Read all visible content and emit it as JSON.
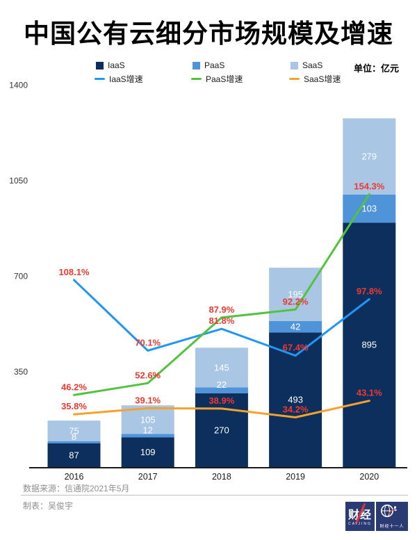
{
  "title": "中国公有云细分市场规模及增速",
  "unit_label": "单位：亿元",
  "legend": {
    "bars": [
      {
        "label": "IaaS",
        "color": "#0d2f5e"
      },
      {
        "label": "PaaS",
        "color": "#4f93d8"
      },
      {
        "label": "SaaS",
        "color": "#a9c6e4"
      }
    ],
    "lines": [
      {
        "label": "IaaS增速",
        "color": "#2196f3"
      },
      {
        "label": "PaaS增速",
        "color": "#52c33c"
      },
      {
        "label": "SaaS增速",
        "color": "#f5a22c"
      }
    ]
  },
  "chart_data": {
    "type": "bar",
    "subtype": "stacked-bar-with-growth-lines",
    "title": "中国公有云细分市场规模及增速",
    "unit": "亿元",
    "categories": [
      "2016",
      "2017",
      "2018",
      "2019",
      "2020"
    ],
    "bar_series": [
      {
        "name": "IaaS",
        "color": "#0d2f5e",
        "values": [
          87,
          109,
          270,
          493,
          895
        ]
      },
      {
        "name": "PaaS",
        "color": "#4f93d8",
        "values": [
          8,
          12,
          22,
          42,
          103
        ]
      },
      {
        "name": "SaaS",
        "color": "#a9c6e4",
        "values": [
          75,
          105,
          145,
          195,
          279
        ]
      }
    ],
    "line_series": [
      {
        "name": "IaaS增速",
        "color": "#2196f3",
        "values": [
          108.1,
          70.1,
          81.8,
          67.4,
          97.8
        ]
      },
      {
        "name": "PaaS增速",
        "color": "#52c33c",
        "values": [
          46.2,
          52.6,
          87.9,
          92.2,
          154.3
        ]
      },
      {
        "name": "SaaS增速",
        "color": "#f5a22c",
        "values": [
          35.8,
          39.1,
          38.9,
          34.2,
          43.1
        ]
      }
    ],
    "y_axis": {
      "ticks": [
        350,
        700,
        1050,
        1400
      ],
      "min": 0,
      "max": 1400,
      "grid": false
    },
    "legend_position": "top",
    "value_label_color": "#ffffff",
    "growth_label_color": "#f0392e"
  },
  "footer": {
    "source": "数据来源：信通院2021年5月",
    "author": "制表：吴俊宇",
    "logo1": {
      "text": "财经",
      "subtext": "CAIJING"
    },
    "logo2": {
      "text": "财经十一人"
    }
  }
}
